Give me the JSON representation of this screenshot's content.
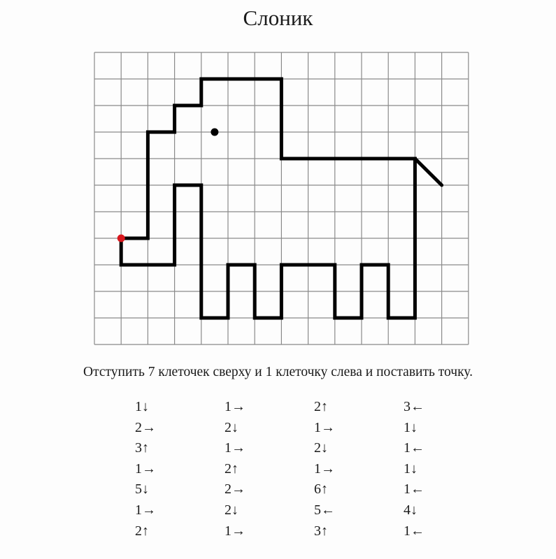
{
  "title": "Слоник",
  "instruction": "Отступить 7 клеточек сверху и 1 клеточку слева и поставить точку.",
  "grid": {
    "columns": 14,
    "rows": 11,
    "start": {
      "from_top": 7,
      "from_left": 1
    }
  },
  "colors": {
    "line": "#000000",
    "grid": "#8a8a8a",
    "start_dot": "#d9181e"
  },
  "steps": [
    [
      "1↓",
      "2→",
      "3↑",
      "1→",
      "5↓",
      "1→",
      "2↑"
    ],
    [
      "1→",
      "2↓",
      "1→",
      "2↑",
      "2→",
      "2↓",
      "1→"
    ],
    [
      "2↑",
      "1→",
      "2↓",
      "1→",
      "6↑",
      "5←",
      "3↑"
    ],
    [
      "3←",
      "1↓",
      "1←",
      "1↓",
      "1←",
      "4↓",
      "1←"
    ]
  ]
}
